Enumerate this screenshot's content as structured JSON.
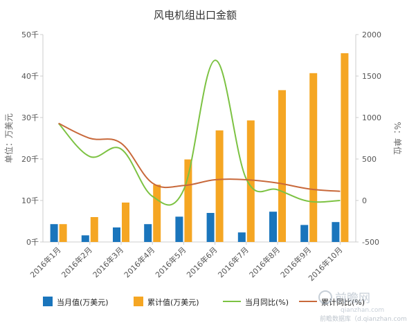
{
  "chart_data": {
    "type": "bar",
    "title": "风电机组出口金额",
    "categories": [
      "2016年1月",
      "2016年2月",
      "2016年3月",
      "2016年4月",
      "2016年5月",
      "2016年6月",
      "2016年7月",
      "2016年8月",
      "2016年9月",
      "2016年10月"
    ],
    "series": [
      {
        "name": "当月值(万美元)",
        "type": "bar",
        "axis": "left",
        "color": "#1a75bc",
        "values": [
          4.3,
          1.6,
          3.5,
          4.3,
          6.1,
          7.0,
          2.3,
          7.3,
          4.1,
          4.8
        ]
      },
      {
        "name": "累计值(万美元)",
        "type": "bar",
        "axis": "left",
        "color": "#f5a623",
        "values": [
          4.3,
          6.0,
          9.5,
          13.8,
          19.9,
          26.9,
          29.3,
          36.6,
          40.7,
          45.5
        ]
      },
      {
        "name": "当月同比(%)",
        "type": "line",
        "axis": "right",
        "color": "#7cc242",
        "values": [
          930,
          530,
          620,
          50,
          130,
          1690,
          260,
          130,
          -10,
          0
        ]
      },
      {
        "name": "累计同比(%)",
        "type": "line",
        "axis": "right",
        "color": "#c8683a",
        "values": [
          930,
          750,
          690,
          210,
          180,
          250,
          250,
          210,
          140,
          110
        ]
      }
    ],
    "y_left": {
      "label": "单位：万美元",
      "min": 0,
      "max": 50,
      "step": 10,
      "tick_labels": [
        "0千",
        "10千",
        "20千",
        "30千",
        "40千",
        "50千"
      ]
    },
    "y_right": {
      "label": "%：单位",
      "min": -500,
      "max": 2000,
      "step": 500,
      "tick_labels": [
        "-500",
        "0",
        "500",
        "1000",
        "1500",
        "2000"
      ]
    },
    "grid": false,
    "legend": "bottom"
  },
  "watermark": {
    "brand": "前瞻网",
    "url": "qianzhan.com",
    "note": "前瞻数据库（d.qianzhan.com）"
  }
}
